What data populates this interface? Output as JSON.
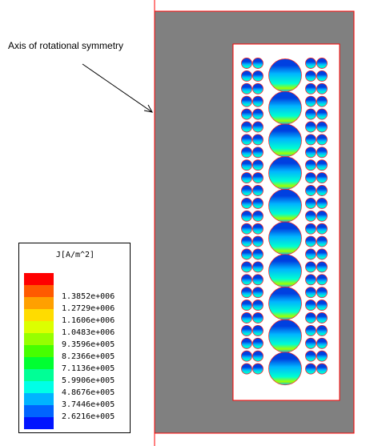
{
  "annotation": {
    "text": "Axis of rotational symmetry"
  },
  "legend": {
    "title": "J[A/m^2]",
    "entries": [
      {
        "color": "#ff0000",
        "label": ""
      },
      {
        "color": "#ff5a00",
        "label": "1.3852e+006"
      },
      {
        "color": "#ffa000",
        "label": "1.2729e+006"
      },
      {
        "color": "#ffdc00",
        "label": "1.1606e+006"
      },
      {
        "color": "#dcff00",
        "label": "1.0483e+006"
      },
      {
        "color": "#96ff00",
        "label": "9.3596e+005"
      },
      {
        "color": "#46ff00",
        "label": "8.2366e+005"
      },
      {
        "color": "#00ff32",
        "label": "7.1136e+005"
      },
      {
        "color": "#00ff96",
        "label": "5.9906e+005"
      },
      {
        "color": "#00ffe6",
        "label": "4.8676e+005"
      },
      {
        "color": "#00b4ff",
        "label": "3.7446e+005"
      },
      {
        "color": "#0064ff",
        "label": "2.6216e+005"
      },
      {
        "color": "#0014ff",
        "label": ""
      }
    ]
  },
  "colors": {
    "core": "#808080",
    "window": "#ffffff",
    "border": "#ff0000",
    "axis": "#ff0000",
    "coil_dark": "#0040e0",
    "coil_mid": "#00b4ff",
    "coil_light": "#00ffd0",
    "coil_hot": "#a0ff00"
  }
}
